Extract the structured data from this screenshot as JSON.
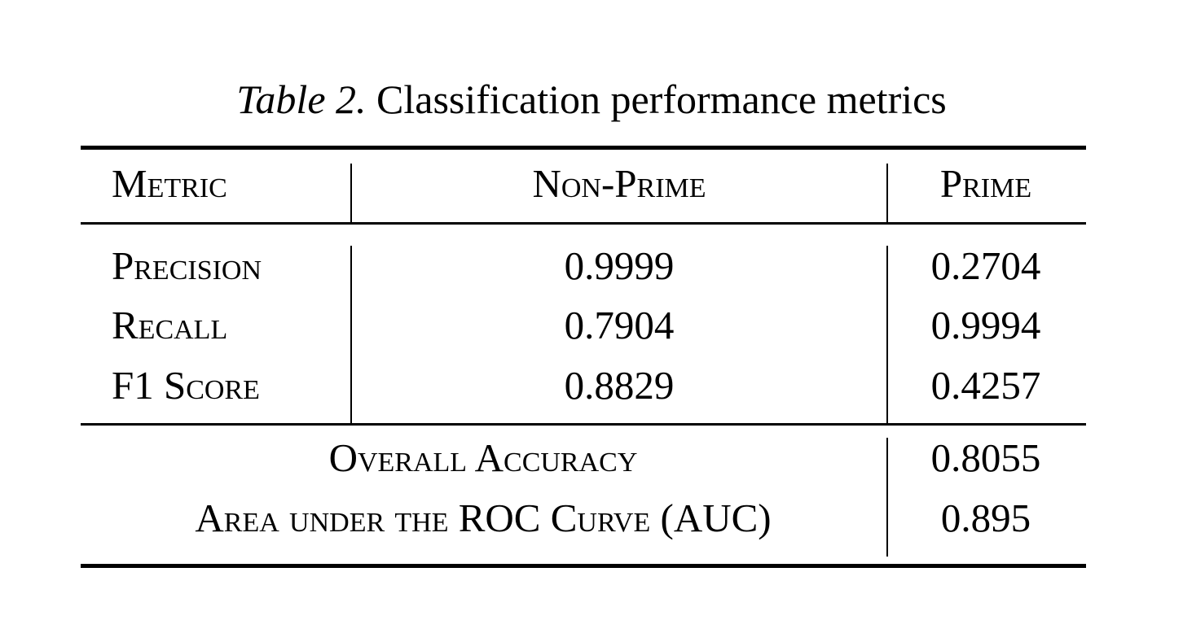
{
  "caption": {
    "label": "Table 2.",
    "text": "Classification performance metrics"
  },
  "header": {
    "metric": "Metric",
    "non_prime": "Non-Prime",
    "prime": "Prime"
  },
  "rows": [
    {
      "metric": "Precision",
      "non_prime": "0.9999",
      "prime": "0.2704"
    },
    {
      "metric": "Recall",
      "non_prime": "0.7904",
      "prime": "0.9994"
    },
    {
      "metric": "F1 Score",
      "non_prime": "0.8829",
      "prime": "0.4257"
    }
  ],
  "summary": [
    {
      "metric": "Overall Accuracy",
      "value": "0.8055"
    },
    {
      "metric": "Area under the ROC Curve (AUC)",
      "value": "0.895"
    }
  ]
}
